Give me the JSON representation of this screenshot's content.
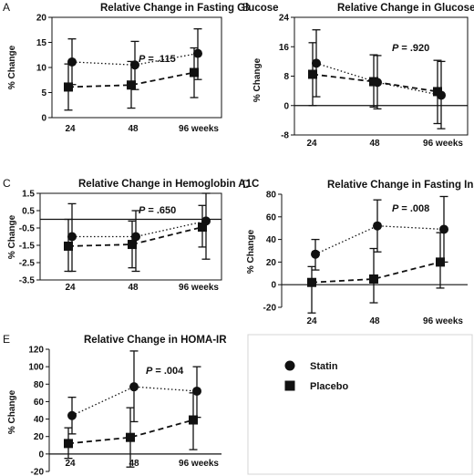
{
  "chart_data": [
    {
      "panel": "A",
      "title": "Relative Change in Fasting Glucose",
      "type": "line",
      "ylabel": "% Change",
      "ylim": [
        0,
        20
      ],
      "yticks": [
        "0",
        "5",
        "10",
        "15",
        "20"
      ],
      "xticks": [
        "24",
        "48",
        "96 weeks"
      ],
      "zero_line": false,
      "p_prefix": "P",
      "p_rest": " = .115",
      "series": [
        {
          "name": "Statin",
          "values": [
            11.1,
            10.5,
            12.8
          ],
          "lower": [
            6.6,
            5.6,
            7.6
          ],
          "upper": [
            15.7,
            15.2,
            17.7
          ]
        },
        {
          "name": "Placebo",
          "values": [
            6.1,
            6.5,
            9.0
          ],
          "lower": [
            1.5,
            1.9,
            4.0
          ],
          "upper": [
            10.7,
            11.2,
            13.9
          ]
        }
      ]
    },
    {
      "panel": "B",
      "title": "Relative Change in Glucose Tolerance",
      "type": "line",
      "ylabel": "% Change",
      "ylim": [
        -8,
        24
      ],
      "yticks": [
        "-8",
        "0",
        "8",
        "16",
        "24"
      ],
      "xticks": [
        "24",
        "48",
        "96 weeks"
      ],
      "zero_line": true,
      "p_prefix": "P",
      "p_rest": " = .920",
      "series": [
        {
          "name": "Statin",
          "values": [
            11.5,
            6.3,
            2.8
          ],
          "lower": [
            2.4,
            -0.9,
            -6.3
          ],
          "upper": [
            20.6,
            13.6,
            12.0
          ]
        },
        {
          "name": "Placebo",
          "values": [
            8.5,
            6.5,
            3.8
          ],
          "lower": [
            0.0,
            -0.4,
            -4.9
          ],
          "upper": [
            17.1,
            13.8,
            12.3
          ]
        }
      ]
    },
    {
      "panel": "C",
      "title": "Relative Change in Hemoglobin A1C",
      "type": "line",
      "ylabel": "% Change",
      "ylim": [
        -3.5,
        1.5
      ],
      "yticks": [
        "-3.5",
        "-2.5",
        "-1.5",
        "-0.5",
        "0.5",
        "1.5"
      ],
      "xticks": [
        "24",
        "48",
        "96 weeks"
      ],
      "zero_line": true,
      "p_prefix": "P",
      "p_rest": " = .650",
      "series": [
        {
          "name": "Statin",
          "values": [
            -1.0,
            -1.0,
            -0.1
          ],
          "lower": [
            -3.0,
            -3.0,
            -2.3
          ],
          "upper": [
            0.9,
            0.5,
            1.5
          ]
        },
        {
          "name": "Placebo",
          "values": [
            -1.55,
            -1.45,
            -0.45
          ],
          "lower": [
            -3.0,
            -2.8,
            -1.6
          ],
          "upper": [
            0.0,
            -0.1,
            0.8
          ]
        }
      ]
    },
    {
      "panel": "D",
      "title": "Relative Change in Fasting Insulin",
      "type": "line",
      "ylabel": "% Change",
      "ylim": [
        -20,
        80
      ],
      "yticks": [
        "-20",
        "0",
        "20",
        "40",
        "60",
        "80"
      ],
      "xticks": [
        "24",
        "48",
        "96 weeks"
      ],
      "zero_line": true,
      "p_prefix": "P",
      "p_rest": " = .008",
      "series": [
        {
          "name": "Statin",
          "values": [
            27,
            52,
            49
          ],
          "lower": [
            13,
            29,
            20
          ],
          "upper": [
            40,
            75,
            78
          ]
        },
        {
          "name": "Placebo",
          "values": [
            2,
            5,
            20
          ],
          "lower": [
            -25,
            -16,
            -3
          ],
          "upper": [
            16,
            32,
            46
          ]
        }
      ]
    },
    {
      "panel": "E",
      "title": "Relative Change in HOMA-IR",
      "type": "line",
      "ylabel": "% Change",
      "ylim": [
        -20,
        120
      ],
      "yticks": [
        "-20",
        "0",
        "20",
        "40",
        "60",
        "80",
        "100",
        "120"
      ],
      "xticks": [
        "24",
        "48",
        "96 weeks"
      ],
      "zero_line": true,
      "p_prefix": "P",
      "p_rest": " = .004",
      "series": [
        {
          "name": "Statin",
          "values": [
            44,
            77,
            72
          ],
          "lower": [
            23,
            37,
            42
          ],
          "upper": [
            65,
            118,
            100
          ]
        },
        {
          "name": "Placebo",
          "values": [
            12,
            19,
            39
          ],
          "lower": [
            -5,
            -15,
            5
          ],
          "upper": [
            30,
            53,
            70
          ]
        }
      ]
    }
  ],
  "legend": {
    "entries": [
      {
        "label": "Statin",
        "marker": "circle"
      },
      {
        "label": "Placebo",
        "marker": "square"
      }
    ]
  }
}
